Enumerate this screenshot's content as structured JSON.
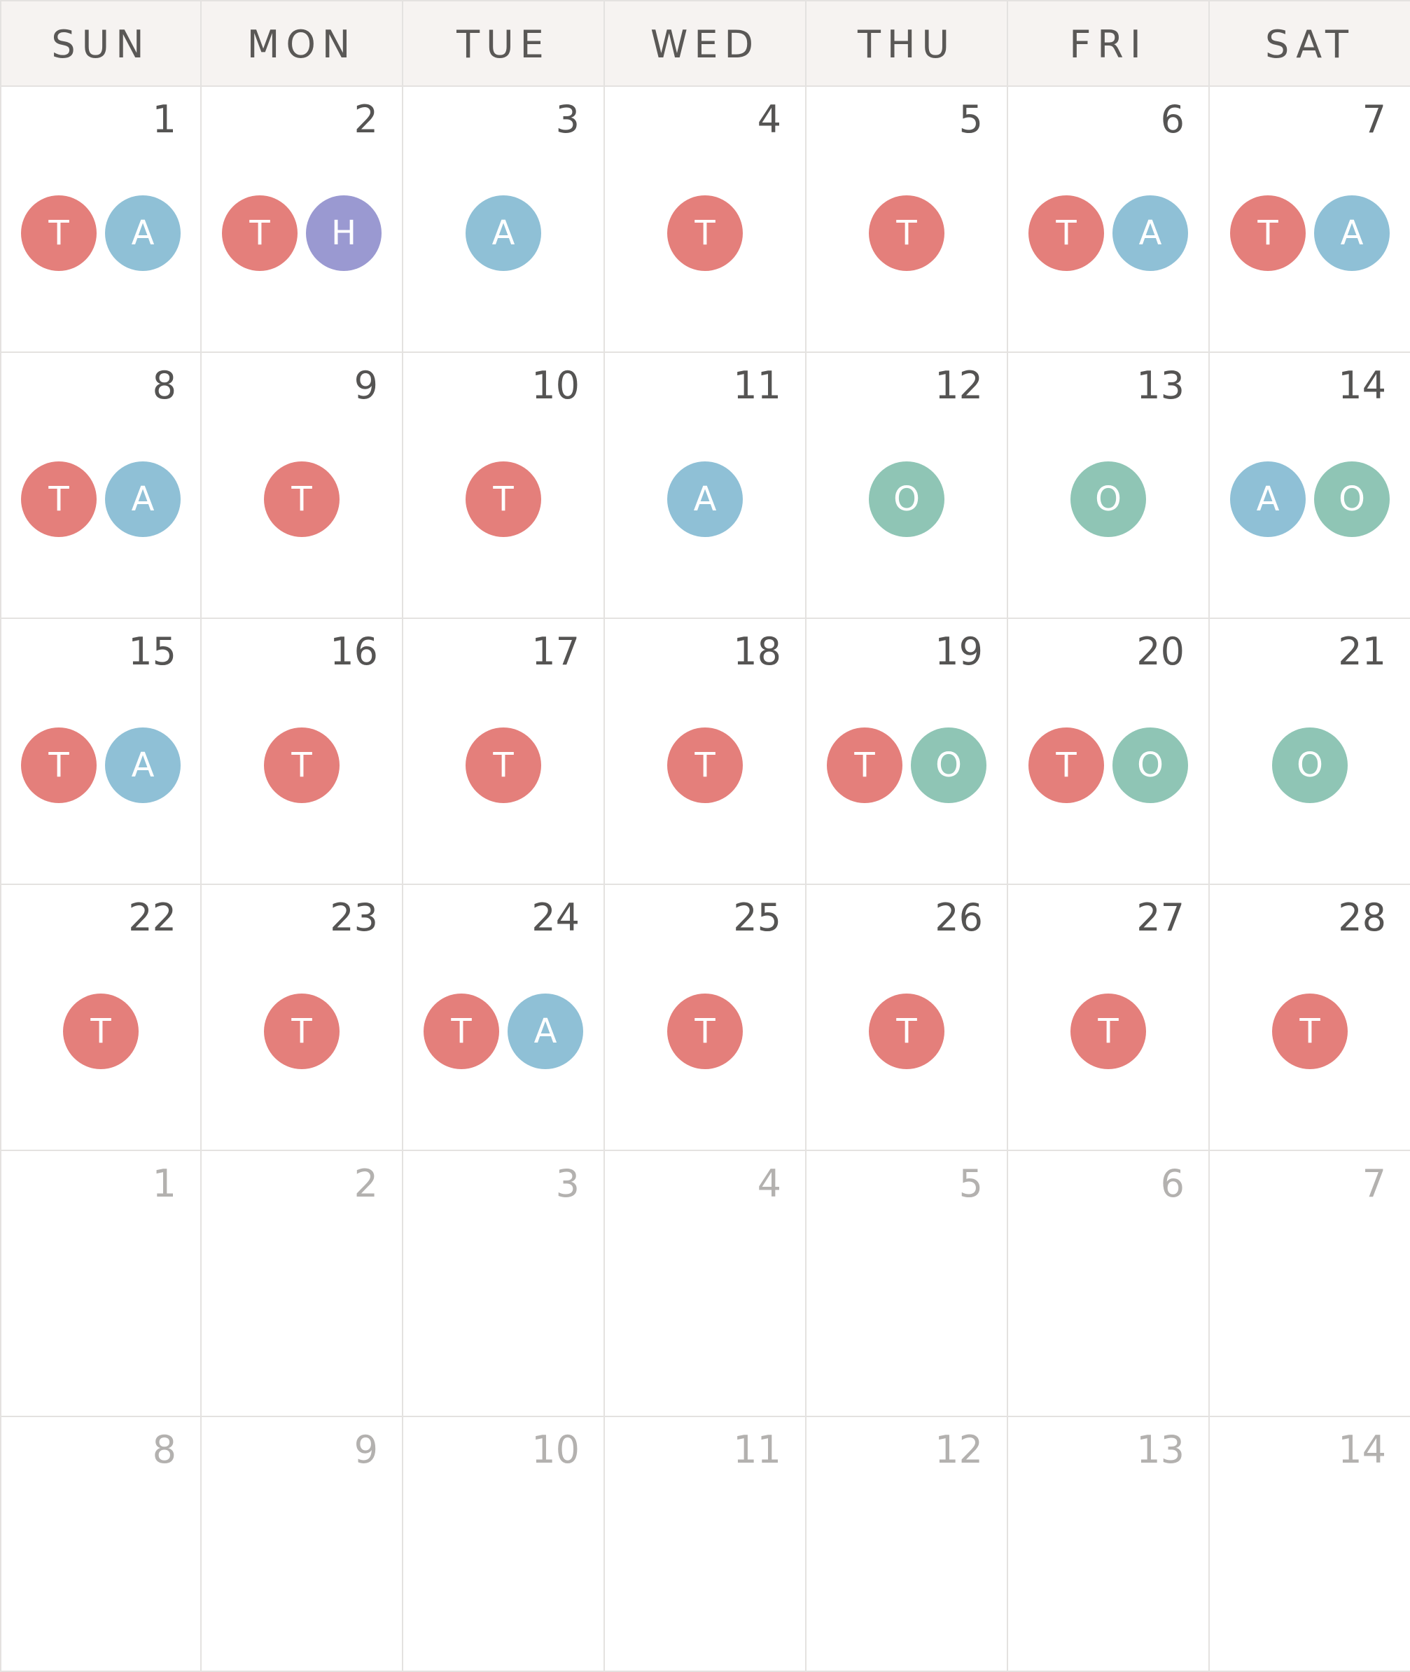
{
  "weekdays": [
    "SUN",
    "MON",
    "TUE",
    "WED",
    "THU",
    "FRI",
    "SAT"
  ],
  "badge_colors": {
    "T": "#e47f7b",
    "A": "#8fc0d6",
    "H": "#9a99d1",
    "O": "#8fc5b5"
  },
  "weeks": [
    [
      {
        "day": "1",
        "outside": false,
        "badges": [
          "T",
          "A"
        ]
      },
      {
        "day": "2",
        "outside": false,
        "badges": [
          "T",
          "H"
        ]
      },
      {
        "day": "3",
        "outside": false,
        "badges": [
          "A"
        ]
      },
      {
        "day": "4",
        "outside": false,
        "badges": [
          "T"
        ]
      },
      {
        "day": "5",
        "outside": false,
        "badges": [
          "T"
        ]
      },
      {
        "day": "6",
        "outside": false,
        "badges": [
          "T",
          "A"
        ]
      },
      {
        "day": "7",
        "outside": false,
        "badges": [
          "T",
          "A"
        ]
      }
    ],
    [
      {
        "day": "8",
        "outside": false,
        "badges": [
          "T",
          "A"
        ]
      },
      {
        "day": "9",
        "outside": false,
        "badges": [
          "T"
        ]
      },
      {
        "day": "10",
        "outside": false,
        "badges": [
          "T"
        ]
      },
      {
        "day": "11",
        "outside": false,
        "badges": [
          "A"
        ]
      },
      {
        "day": "12",
        "outside": false,
        "badges": [
          "O"
        ]
      },
      {
        "day": "13",
        "outside": false,
        "badges": [
          "O"
        ]
      },
      {
        "day": "14",
        "outside": false,
        "badges": [
          "A",
          "O"
        ]
      }
    ],
    [
      {
        "day": "15",
        "outside": false,
        "badges": [
          "T",
          "A"
        ]
      },
      {
        "day": "16",
        "outside": false,
        "badges": [
          "T"
        ]
      },
      {
        "day": "17",
        "outside": false,
        "badges": [
          "T"
        ]
      },
      {
        "day": "18",
        "outside": false,
        "badges": [
          "T"
        ]
      },
      {
        "day": "19",
        "outside": false,
        "badges": [
          "T",
          "O"
        ]
      },
      {
        "day": "20",
        "outside": false,
        "badges": [
          "T",
          "O"
        ]
      },
      {
        "day": "21",
        "outside": false,
        "badges": [
          "O"
        ]
      }
    ],
    [
      {
        "day": "22",
        "outside": false,
        "badges": [
          "T"
        ]
      },
      {
        "day": "23",
        "outside": false,
        "badges": [
          "T"
        ]
      },
      {
        "day": "24",
        "outside": false,
        "badges": [
          "T",
          "A"
        ]
      },
      {
        "day": "25",
        "outside": false,
        "badges": [
          "T"
        ]
      },
      {
        "day": "26",
        "outside": false,
        "badges": [
          "T"
        ]
      },
      {
        "day": "27",
        "outside": false,
        "badges": [
          "T"
        ]
      },
      {
        "day": "28",
        "outside": false,
        "badges": [
          "T"
        ]
      }
    ],
    [
      {
        "day": "1",
        "outside": true,
        "badges": []
      },
      {
        "day": "2",
        "outside": true,
        "badges": []
      },
      {
        "day": "3",
        "outside": true,
        "badges": []
      },
      {
        "day": "4",
        "outside": true,
        "badges": []
      },
      {
        "day": "5",
        "outside": true,
        "badges": []
      },
      {
        "day": "6",
        "outside": true,
        "badges": []
      },
      {
        "day": "7",
        "outside": true,
        "badges": []
      }
    ],
    [
      {
        "day": "8",
        "outside": true,
        "badges": []
      },
      {
        "day": "9",
        "outside": true,
        "badges": []
      },
      {
        "day": "10",
        "outside": true,
        "badges": []
      },
      {
        "day": "11",
        "outside": true,
        "badges": []
      },
      {
        "day": "12",
        "outside": true,
        "badges": []
      },
      {
        "day": "13",
        "outside": true,
        "badges": []
      },
      {
        "day": "14",
        "outside": true,
        "badges": []
      }
    ]
  ]
}
